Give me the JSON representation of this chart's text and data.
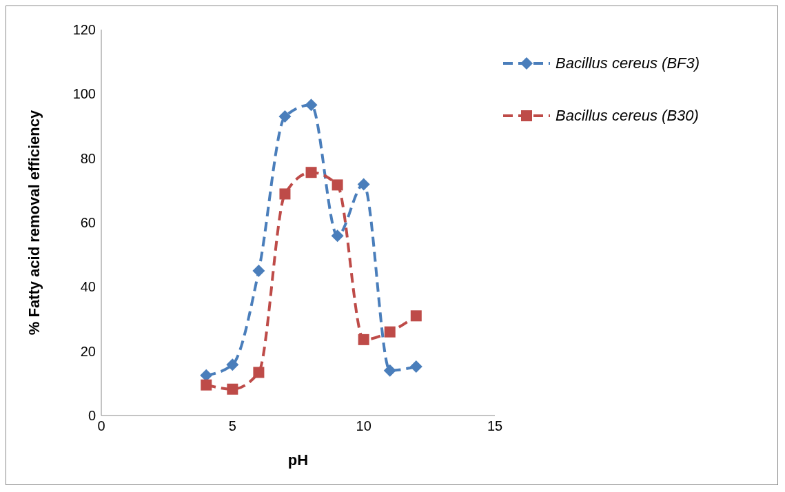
{
  "chart_data": {
    "type": "line",
    "xlabel": "pH",
    "ylabel": "% Fatty acid removal efficiency",
    "xlim": [
      0,
      15
    ],
    "xticks": [
      0,
      5,
      10,
      15
    ],
    "ylim": [
      0,
      120
    ],
    "yticks": [
      0,
      20,
      40,
      60,
      80,
      100,
      120
    ],
    "grid": false,
    "legend": "top right",
    "line_style": "dashed",
    "series": [
      {
        "name": "Bacillus cereus (BF3)",
        "color": "#4a7ebb",
        "marker": "diamond",
        "x": [
          4,
          5,
          6,
          7,
          8,
          9,
          10,
          11,
          12
        ],
        "values": [
          12.5,
          15.8,
          45,
          93,
          96.6,
          55.9,
          71.9,
          14,
          15.2
        ]
      },
      {
        "name": "Bacillus cereus (B30)",
        "color": "#be4b48",
        "marker": "square",
        "x": [
          4,
          5,
          6,
          7,
          8,
          9,
          10,
          11,
          12
        ],
        "values": [
          9.5,
          8.2,
          13.4,
          68.9,
          75.6,
          71.7,
          23.6,
          26,
          31
        ]
      }
    ]
  }
}
